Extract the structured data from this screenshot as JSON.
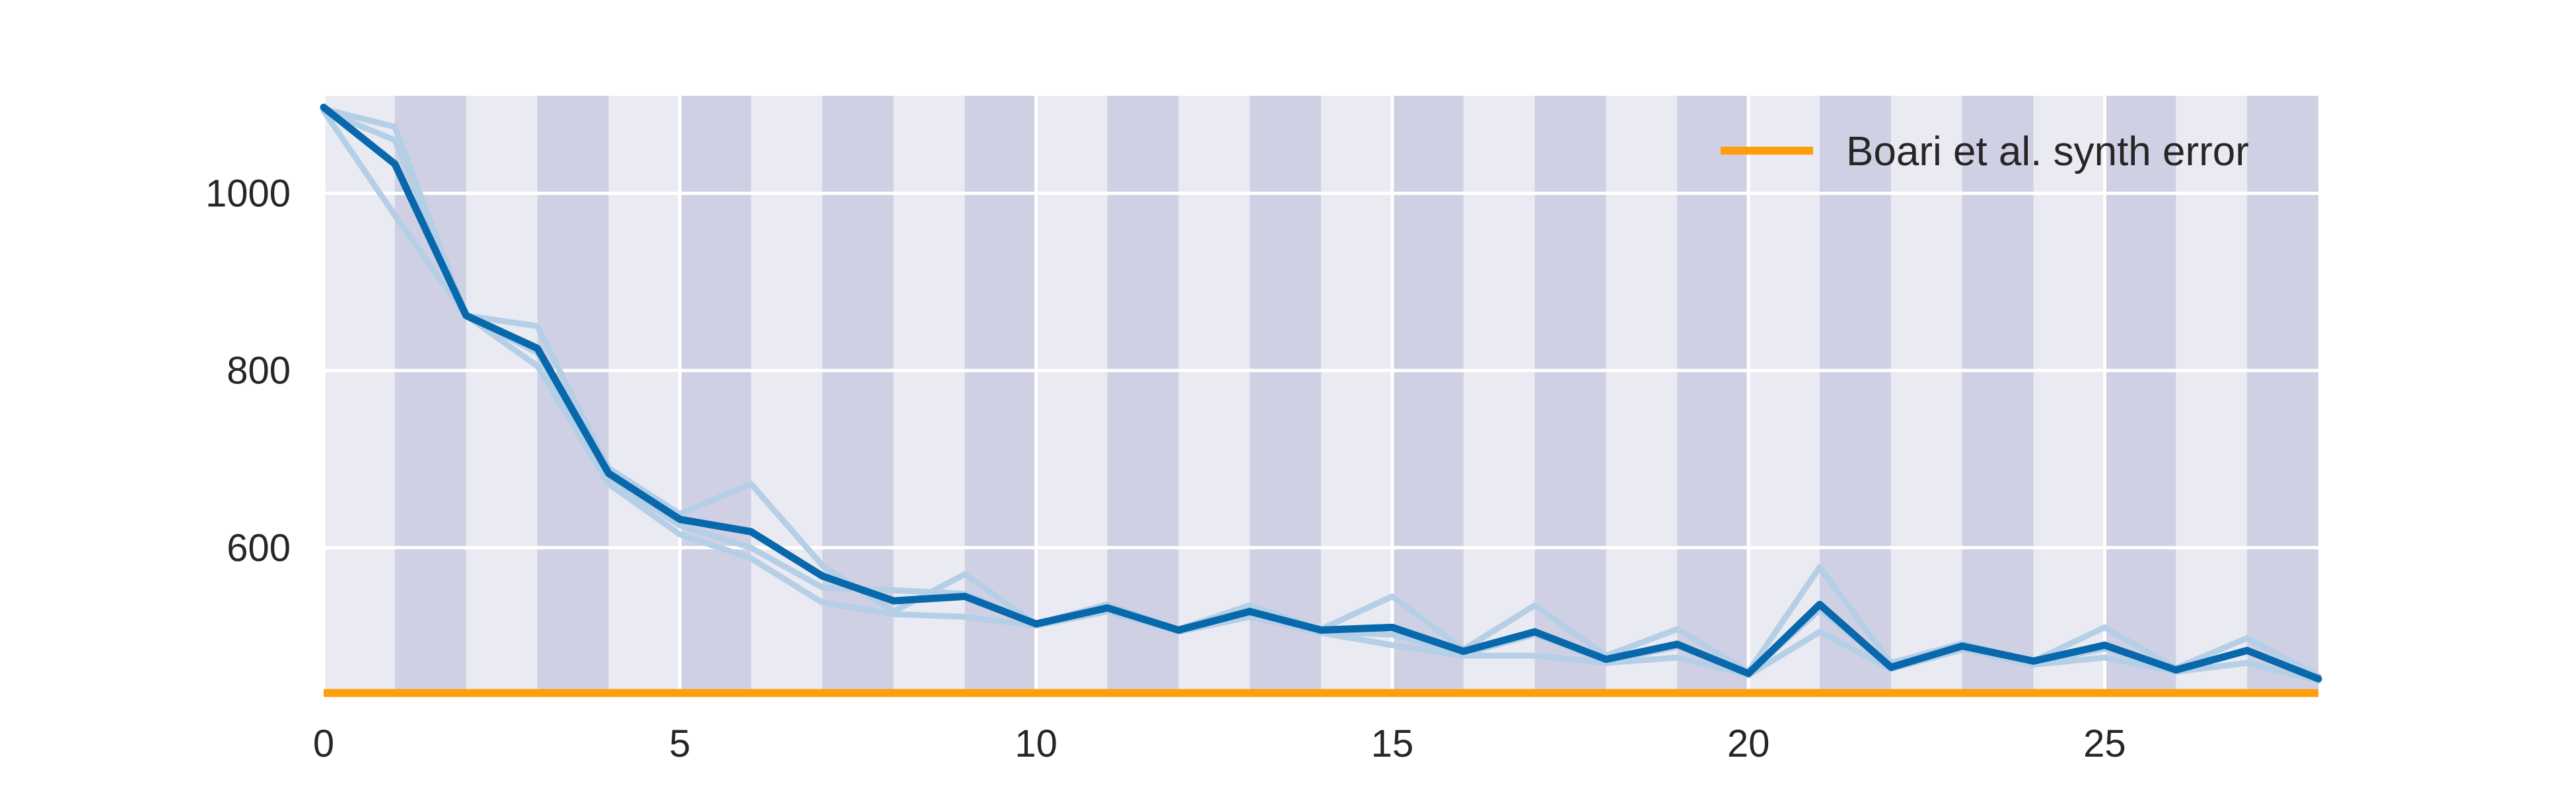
{
  "chart_data": {
    "type": "line",
    "x": [
      0,
      1,
      2,
      3,
      4,
      5,
      6,
      7,
      8,
      9,
      10,
      11,
      12,
      13,
      14,
      15,
      16,
      17,
      18,
      19,
      20,
      21,
      22,
      23,
      24,
      25,
      26,
      27,
      28
    ],
    "xlim": [
      0,
      28
    ],
    "ylim": [
      435,
      1110
    ],
    "xticks": [
      "0",
      "5",
      "10",
      "15",
      "20",
      "25"
    ],
    "xtick_values": [
      0,
      5,
      10,
      15,
      20,
      25
    ],
    "yticks": [
      "600",
      "800",
      "1000"
    ],
    "ytick_values": [
      600,
      800,
      1000
    ],
    "grid": true,
    "shaded_intervals": [
      [
        1,
        2
      ],
      [
        3,
        4
      ],
      [
        5,
        6
      ],
      [
        7,
        8
      ],
      [
        9,
        10
      ],
      [
        11,
        12
      ],
      [
        13,
        14
      ],
      [
        15,
        16
      ],
      [
        17,
        18
      ],
      [
        19,
        20
      ],
      [
        21,
        22
      ],
      [
        23,
        24
      ],
      [
        25,
        26
      ],
      [
        27,
        28
      ]
    ],
    "series": [
      {
        "name": "",
        "role": "mean",
        "values": [
          1097,
          1033,
          862,
          825,
          684,
          632,
          618,
          568,
          540,
          545,
          514,
          532,
          507,
          528,
          507,
          510,
          483,
          505,
          474,
          491,
          458,
          536,
          465,
          489,
          472,
          490,
          462,
          484,
          452
        ]
      },
      {
        "name": "",
        "role": "run",
        "values": [
          1095,
          1075,
          862,
          850,
          690,
          638,
          672,
          580,
          528,
          570,
          514,
          536,
          508,
          535,
          508,
          545,
          485,
          535,
          478,
          508,
          460,
          578,
          470,
          492,
          472,
          510,
          464,
          498,
          455
        ]
      },
      {
        "name": "",
        "role": "run",
        "values": [
          1093,
          1060,
          862,
          820,
          678,
          625,
          600,
          555,
          552,
          548,
          514,
          534,
          506,
          525,
          505,
          502,
          480,
          502,
          472,
          488,
          458,
          530,
          464,
          488,
          470,
          486,
          461,
          484,
          452
        ]
      },
      {
        "name": "",
        "role": "run",
        "values": [
          1093,
          975,
          862,
          805,
          672,
          615,
          588,
          538,
          525,
          522,
          512,
          528,
          505,
          522,
          504,
          490,
          478,
          478,
          470,
          476,
          456,
          505,
          463,
          485,
          468,
          476,
          460,
          470,
          450
        ]
      },
      {
        "name": "Boari et al. synth error",
        "role": "baseline",
        "constant": 436
      }
    ],
    "legend": {
      "position": "top-right",
      "label": "Boari et al. synth error"
    },
    "colors": {
      "background": "#eaeaf2",
      "band": "#d0d0e4",
      "grid": "#ffffff",
      "mean": "#0868ac",
      "run": "#b4cfe6",
      "baseline": "#ff9e0d"
    }
  }
}
